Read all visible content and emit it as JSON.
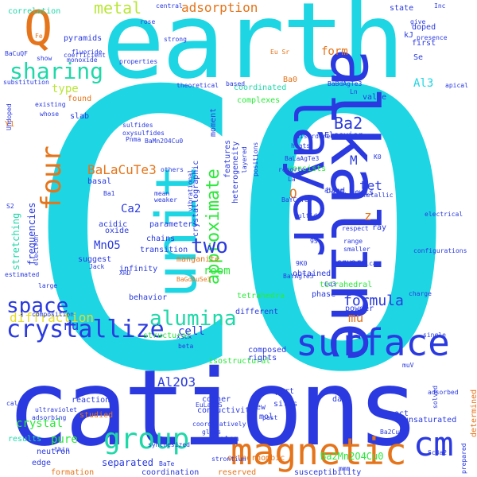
{
  "palette": {
    "cyan": "#1ed6e3",
    "blue": "#2a3ae0",
    "green": "#2bea3a",
    "orange": "#e5741a",
    "lime": "#b9e636",
    "teal": "#1fd8a8",
    "yellow": "#e5dd28",
    "gray": "#6b6b6b"
  },
  "words": [
    {
      "text": "CO"
    },
    {
      "text": "cations"
    },
    {
      "text": "earth"
    },
    {
      "text": "alkaline"
    },
    {
      "text": "unit"
    },
    {
      "text": "layer"
    },
    {
      "text": "surface"
    },
    {
      "text": "magnetic"
    },
    {
      "text": "group"
    },
    {
      "text": "four"
    },
    {
      "text": "cm"
    },
    {
      "text": "crystallize"
    },
    {
      "text": "sharing"
    },
    {
      "text": "space"
    },
    {
      "text": "alumina"
    },
    {
      "text": "approximate"
    },
    {
      "text": "two"
    },
    {
      "text": "Q"
    },
    {
      "text": "metal"
    },
    {
      "text": "diffraction"
    },
    {
      "text": "BaLaCuTe3"
    },
    {
      "text": "Ba2"
    },
    {
      "text": "formula"
    },
    {
      "text": "Ba2Mn2O4Cu0"
    },
    {
      "text": "Al2O3"
    },
    {
      "text": "adsorption"
    },
    {
      "text": "correlation"
    },
    {
      "text": "form"
    },
    {
      "text": "Al3"
    },
    {
      "text": "type"
    },
    {
      "text": "MnO5"
    },
    {
      "text": "Ca2"
    },
    {
      "text": "crystal"
    },
    {
      "text": "pure"
    },
    {
      "text": "separated"
    },
    {
      "text": "room"
    },
    {
      "text": "mu"
    },
    {
      "text": "frequencies"
    },
    {
      "text": "stretching"
    },
    {
      "text": "cell"
    },
    {
      "text": "nu"
    },
    {
      "text": "tet"
    },
    {
      "text": "M"
    },
    {
      "text": "O"
    },
    {
      "text": "z"
    },
    {
      "text": "coordinated"
    },
    {
      "text": "pyramids"
    },
    {
      "text": "BaCuQF"
    },
    {
      "text": "Eu Sr"
    },
    {
      "text": "Ba0"
    },
    {
      "text": "found"
    },
    {
      "text": "complexes"
    },
    {
      "text": "based"
    },
    {
      "text": "consists"
    },
    {
      "text": "manganite"
    },
    {
      "text": "transition"
    },
    {
      "text": "infinity"
    },
    {
      "text": "tetrahedra"
    },
    {
      "text": "tetrahedral"
    },
    {
      "text": "square"
    },
    {
      "text": "reaction"
    },
    {
      "text": "results"
    },
    {
      "text": "orthorhombic"
    },
    {
      "text": "susceptibility"
    },
    {
      "text": "reserved"
    },
    {
      "text": "determined"
    },
    {
      "text": "edge"
    },
    {
      "text": "formation"
    },
    {
      "text": "structural"
    },
    {
      "text": "isostructural"
    },
    {
      "text": "studied"
    },
    {
      "text": "state"
    },
    {
      "text": "kJ"
    },
    {
      "text": "doped"
    },
    {
      "text": "first"
    },
    {
      "text": "Se"
    },
    {
      "text": "Elsevier"
    },
    {
      "text": "Lewis"
    },
    {
      "text": "ray"
    },
    {
      "text": "value"
    },
    {
      "text": "band"
    },
    {
      "text": "obtained"
    },
    {
      "text": "phase"
    },
    {
      "text": "powder"
    },
    {
      "text": "data"
    },
    {
      "text": "composed"
    },
    {
      "text": "rights"
    },
    {
      "text": "corner"
    },
    {
      "text": "conductivity"
    },
    {
      "text": "sites"
    },
    {
      "text": "mol"
    },
    {
      "text": "new"
    },
    {
      "text": "oct"
    },
    {
      "text": "part"
    },
    {
      "text": "unsaturated"
    },
    {
      "text": "neutron"
    },
    {
      "text": "coordination"
    },
    {
      "text": "system"
    },
    {
      "text": "different"
    },
    {
      "text": "behavior"
    },
    {
      "text": "oxide"
    },
    {
      "text": "acidic"
    },
    {
      "text": "basal"
    },
    {
      "text": "chains"
    },
    {
      "text": "parameters"
    },
    {
      "text": "suggest"
    },
    {
      "text": "slab"
    },
    {
      "text": "Y1"
    },
    {
      "text": "features"
    },
    {
      "text": "moment"
    },
    {
      "text": "heterogeneity"
    },
    {
      "text": "crystallographic"
    },
    {
      "text": "properties"
    },
    {
      "text": "fluoride"
    },
    {
      "text": "theoretical"
    },
    {
      "text": "BaGdAuSe3"
    },
    {
      "text": "BaYAgTe3"
    },
    {
      "text": "BaYCuTe3"
    },
    {
      "text": "BaLaAgTe3"
    },
    {
      "text": "xScx"
    },
    {
      "text": "beta"
    },
    {
      "text": "ScBa2"
    },
    {
      "text": "Ba1"
    },
    {
      "text": "XRD"
    },
    {
      "text": "Cu3"
    },
    {
      "text": "9S"
    },
    {
      "text": "9K0"
    },
    {
      "text": "respect"
    },
    {
      "text": "range"
    },
    {
      "text": "reported"
    },
    {
      "text": "sulfide"
    },
    {
      "text": "La"
    },
    {
      "text": "charge"
    },
    {
      "text": "electrical"
    },
    {
      "text": "single"
    },
    {
      "text": "muV"
    },
    {
      "text": "adsorbed"
    },
    {
      "text": "mmm"
    },
    {
      "text": "Ba2CuS3"
    },
    {
      "text": "configurations"
    },
    {
      "text": "solved"
    },
    {
      "text": "prepared"
    },
    {
      "text": "smaller"
    },
    {
      "text": "American"
    },
    {
      "text": "intermetallic"
    },
    {
      "text": "along"
    },
    {
      "text": "disordered"
    },
    {
      "text": "heats"
    },
    {
      "text": "layered"
    },
    {
      "text": "positions"
    },
    {
      "text": "sulfides"
    },
    {
      "text": "oxysulfides"
    },
    {
      "text": "Pnma"
    },
    {
      "text": "presence"
    },
    {
      "text": "give"
    },
    {
      "text": "rose"
    },
    {
      "text": "strong"
    },
    {
      "text": "central"
    },
    {
      "text": "coefficient"
    },
    {
      "text": "monoxide"
    },
    {
      "text": "show"
    },
    {
      "text": "substitution"
    },
    {
      "text": "existing"
    },
    {
      "text": "whose"
    },
    {
      "text": "Undoped"
    },
    {
      "text": "electron"
    },
    {
      "text": "S2"
    },
    {
      "text": "large"
    },
    {
      "text": "estimated"
    },
    {
      "text": "composition"
    },
    {
      "text": "ultraviolet"
    },
    {
      "text": "adsorbing"
    },
    {
      "text": "mean"
    },
    {
      "text": "weaker"
    },
    {
      "text": "others"
    },
    {
      "text": "vibrational"
    },
    {
      "text": "synthesized"
    },
    {
      "text": "strontium"
    },
    {
      "text": "coordinatively"
    },
    {
      "text": "glass"
    },
    {
      "text": "past"
    },
    {
      "text": "apical"
    },
    {
      "text": "Fe"
    },
    {
      "text": "Inc"
    },
    {
      "text": "Ln"
    },
    {
      "text": "BaBdAgTe3"
    },
    {
      "text": "BaTe"
    },
    {
      "text": "EuLaCuS"
    },
    {
      "text": "BaMn2O4Cu0"
    },
    {
      "text": "Jack"
    },
    {
      "text": "thin"
    },
    {
      "text": "calc"
    },
    {
      "text": "K0"
    }
  ]
}
